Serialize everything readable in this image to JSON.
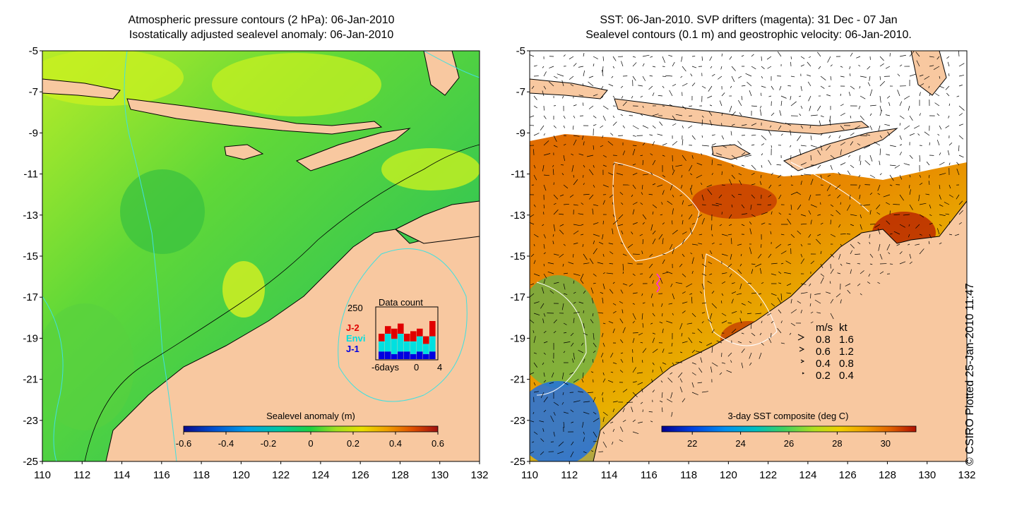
{
  "left_panel": {
    "title_line1": "Atmospheric pressure contours (2 hPa): 06-Jan-2010",
    "title_line2": "Isostatically adjusted sealevel anomaly: 06-Jan-2010",
    "colorbar": {
      "label": "Sealevel anomaly (m)",
      "ticks": [
        "-0.6",
        "-0.4",
        "-0.2",
        "0",
        "0.2",
        "0.4",
        "0.6"
      ],
      "colors": [
        "#0a0a8c",
        "#0050d0",
        "#00a0e8",
        "#00c8a0",
        "#20d040",
        "#a0e020",
        "#e8e000",
        "#f0a000",
        "#e05000",
        "#a01010"
      ]
    },
    "data_count": {
      "title": "Data count",
      "max_label": "250",
      "x_labels": [
        "-6days",
        "0",
        "4"
      ],
      "legend": [
        {
          "label": "J-2",
          "color": "#e00000"
        },
        {
          "label": "Envi",
          "color": "#00e0e0"
        },
        {
          "label": "J-1",
          "color": "#0000e0"
        }
      ],
      "bars": [
        {
          "j1": 0.15,
          "envi": 0.2,
          "j2": 0.15
        },
        {
          "j1": 0.15,
          "envi": 0.35,
          "j2": 0.15
        },
        {
          "j1": 0.1,
          "envi": 0.3,
          "j2": 0.2
        },
        {
          "j1": 0.15,
          "envi": 0.35,
          "j2": 0.2
        },
        {
          "j1": 0.15,
          "envi": 0.2,
          "j2": 0.15
        },
        {
          "j1": 0.1,
          "envi": 0.25,
          "j2": 0.2
        },
        {
          "j1": 0.15,
          "envi": 0.3,
          "j2": 0.15
        },
        {
          "j1": 0.1,
          "envi": 0.2,
          "j2": 0.15
        },
        {
          "j1": 0.15,
          "envi": 0.3,
          "j2": 0.3
        }
      ]
    }
  },
  "right_panel": {
    "title_line1": "SST: 06-Jan-2010. SVP drifters (magenta): 31 Dec - 07 Jan",
    "title_line2": "Sealevel contours (0.1 m) and geostrophic velocity: 06-Jan-2010.",
    "colorbar": {
      "label": "3-day SST composite (deg C)",
      "ticks": [
        "22",
        "24",
        "26",
        "28",
        "30"
      ],
      "colors": [
        "#000090",
        "#0040e0",
        "#0090f0",
        "#00c0c0",
        "#40d060",
        "#b0e020",
        "#f0d000",
        "#f0a000",
        "#e06000",
        "#b01000"
      ]
    },
    "velocity_legend": {
      "header_ms": "m/s",
      "header_kt": "kt",
      "rows": [
        {
          "ms": "0.8",
          "kt": "1.6"
        },
        {
          "ms": "0.6",
          "kt": "1.2"
        },
        {
          "ms": "0.4",
          "kt": "0.8"
        },
        {
          "ms": "0.2",
          "kt": "0.4"
        }
      ]
    }
  },
  "axes": {
    "x_ticks": [
      "110",
      "112",
      "114",
      "116",
      "118",
      "120",
      "122",
      "124",
      "126",
      "128",
      "130",
      "132"
    ],
    "y_ticks": [
      "-5",
      "-7",
      "-9",
      "-11",
      "-13",
      "-15",
      "-17",
      "-19",
      "-21",
      "-23",
      "-25"
    ],
    "lon_range": [
      110,
      132
    ],
    "lat_range": [
      -25,
      -5
    ]
  },
  "copyright": "© CSIRO Plotted 25-Jan-2010 11:47",
  "colors": {
    "land": "#f8c8a0",
    "sea_green": "#40d040",
    "sea_yellow": "#c8f020",
    "sst_orange": "#e08000",
    "contour_cyan": "#40e0e0"
  }
}
